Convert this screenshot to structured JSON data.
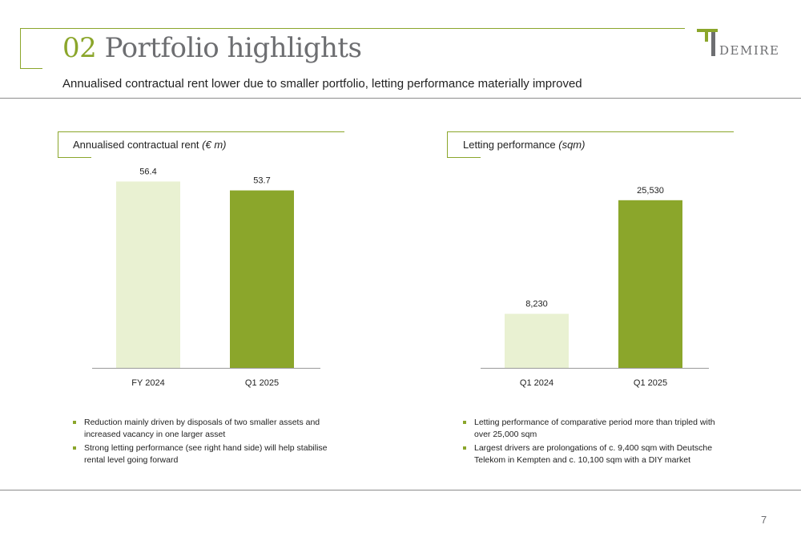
{
  "header": {
    "title_num": "02",
    "title_text": "Portfolio highlights",
    "subtitle": "Annualised contractual rent lower due to smaller portfolio, letting performance materially improved",
    "logo_text": "DEMIRE"
  },
  "colors": {
    "accent": "#8ba62b",
    "bar_light": "#e9f1d2",
    "bar_dark": "#8ba62b",
    "grey": "#6d6e71"
  },
  "left_panel": {
    "label": "Annualised contractual rent",
    "unit": "(€ m)",
    "bullets": [
      "Reduction mainly driven by disposals of two smaller assets and increased vacancy in one larger asset",
      "Strong letting performance (see right hand side) will help stabilise rental level going forward"
    ]
  },
  "right_panel": {
    "label": "Letting performance",
    "unit": "(sqm)",
    "bullets": [
      "Letting performance of comparative period more than tripled with over 25,000 sqm",
      "Largest drivers are prolongations of c. 9,400 sqm with Deutsche Telekom in Kempten and c. 10,100 sqm with a DIY market"
    ]
  },
  "chart_data": [
    {
      "type": "bar",
      "categories": [
        "FY 2024",
        "Q1 2025"
      ],
      "values": [
        56.4,
        53.7
      ],
      "value_labels": [
        "56.4",
        "53.7"
      ],
      "ylim": [
        0,
        61.6
      ]
    },
    {
      "type": "bar",
      "categories": [
        "Q1 2024",
        "Q1 2025"
      ],
      "values": [
        8230,
        25530
      ],
      "value_labels": [
        "8,230",
        "25,530"
      ],
      "ylim": [
        0,
        31000
      ]
    }
  ],
  "footer": {
    "page_number": "7"
  }
}
